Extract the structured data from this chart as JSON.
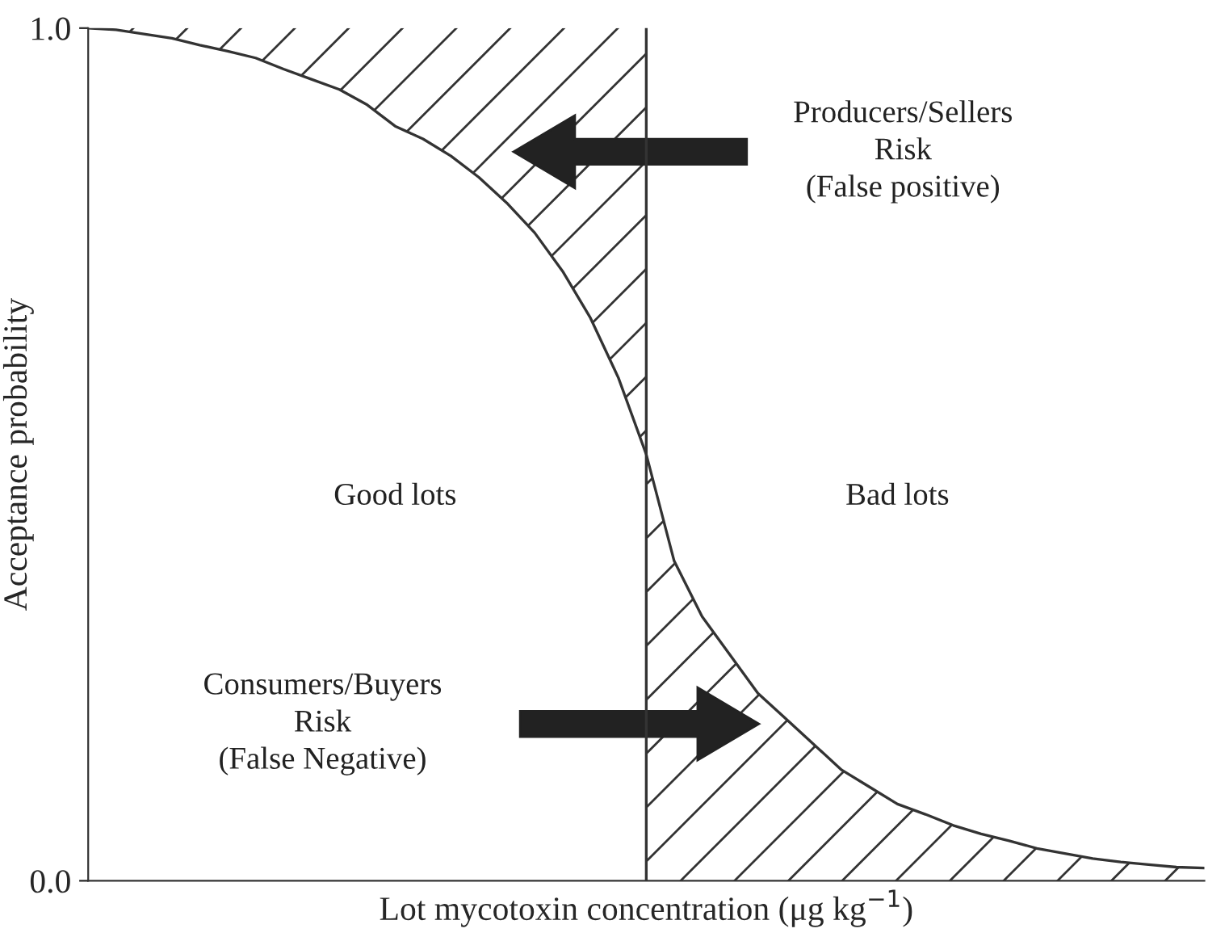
{
  "chart_data": {
    "type": "line",
    "xlabel": "Lot mycotoxin concentration (μg kg$^{−1}$)",
    "ylabel": "Acceptance probability",
    "tick_labels": "y",
    "ylim": [
      0,
      1
    ],
    "yticks": [
      {
        "value": 0,
        "label": "0.0"
      },
      {
        "value": 1,
        "label": "1.0"
      }
    ],
    "grid": false,
    "legend": false,
    "categories": [
      null,
      null,
      null,
      null,
      null,
      null,
      null,
      null,
      null,
      null,
      null,
      null,
      null,
      null,
      null,
      null,
      null,
      null,
      null,
      null,
      null,
      null,
      null,
      null,
      null,
      null,
      null,
      null,
      null,
      null,
      null,
      null,
      null,
      null,
      null,
      null,
      null,
      null,
      null,
      null,
      null
    ],
    "series": [
      {
        "color": "#333333",
        "values": [
          1.0,
          0.998,
          0.993,
          0.988,
          0.98,
          0.973,
          0.965,
          0.952,
          0.94,
          0.928,
          0.91,
          0.885,
          0.87,
          0.85,
          0.825,
          0.795,
          0.76,
          0.715,
          0.66,
          0.59,
          0.5,
          0.375,
          0.31,
          0.265,
          0.22,
          0.19,
          0.16,
          0.13,
          0.11,
          0.09,
          0.078,
          0.065,
          0.055,
          0.047,
          0.038,
          0.032,
          0.026,
          0.022,
          0.019,
          0.016,
          0.015
        ]
      }
    ],
    "annotations": [
      "Producers/Sellers\nRisk\n(False positive)",
      "Good lots",
      "Bad lots",
      "Consumers/Buyers\nRisk\n(False Negative)"
    ]
  }
}
